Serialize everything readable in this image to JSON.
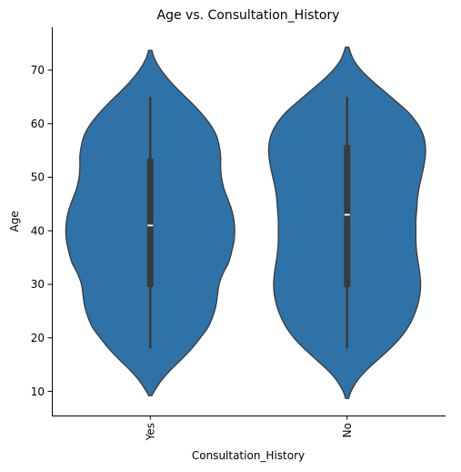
{
  "chart_data": {
    "type": "violin",
    "title": "Age vs. Consultation_History",
    "xlabel": "Consultation_History",
    "ylabel": "Age",
    "categories": [
      "Yes",
      "No"
    ],
    "yticks": [
      10,
      20,
      30,
      40,
      50,
      60,
      70
    ],
    "ylim": [
      5.5,
      78
    ],
    "grid": false,
    "color": "#2f72a8",
    "edge_color": "#3a3a3a",
    "box_color": "#3a3a3a",
    "median_color": "#ffffff",
    "series": [
      {
        "category": "Yes",
        "min": 18,
        "q1": 29.5,
        "median": 41,
        "q3": 53.5,
        "max": 65,
        "density": [
          [
            9.2,
            0.02
          ],
          [
            10,
            0.05
          ],
          [
            12,
            0.14
          ],
          [
            14,
            0.26
          ],
          [
            16,
            0.4
          ],
          [
            18,
            0.53
          ],
          [
            20,
            0.64
          ],
          [
            22,
            0.74
          ],
          [
            24,
            0.8
          ],
          [
            26,
            0.84
          ],
          [
            28,
            0.86
          ],
          [
            30,
            0.88
          ],
          [
            32,
            0.93
          ],
          [
            34,
            1.0
          ],
          [
            36,
            1.04
          ],
          [
            38,
            1.07
          ],
          [
            40,
            1.08
          ],
          [
            42,
            1.07
          ],
          [
            44,
            1.04
          ],
          [
            46,
            0.99
          ],
          [
            48,
            0.94
          ],
          [
            50,
            0.91
          ],
          [
            52,
            0.9
          ],
          [
            54,
            0.9
          ],
          [
            56,
            0.88
          ],
          [
            58,
            0.84
          ],
          [
            60,
            0.76
          ],
          [
            62,
            0.65
          ],
          [
            64,
            0.52
          ],
          [
            66,
            0.38
          ],
          [
            68,
            0.25
          ],
          [
            70,
            0.14
          ],
          [
            72,
            0.06
          ],
          [
            73.7,
            0.02
          ]
        ]
      },
      {
        "category": "No",
        "min": 18,
        "q1": 29.5,
        "median": 43,
        "q3": 56,
        "max": 65,
        "density": [
          [
            8.7,
            0.02
          ],
          [
            10,
            0.05
          ],
          [
            12,
            0.13
          ],
          [
            14,
            0.25
          ],
          [
            16,
            0.4
          ],
          [
            18,
            0.55
          ],
          [
            20,
            0.68
          ],
          [
            22,
            0.78
          ],
          [
            24,
            0.85
          ],
          [
            26,
            0.9
          ],
          [
            28,
            0.93
          ],
          [
            30,
            0.94
          ],
          [
            32,
            0.93
          ],
          [
            34,
            0.91
          ],
          [
            36,
            0.89
          ],
          [
            38,
            0.88
          ],
          [
            40,
            0.88
          ],
          [
            42,
            0.88
          ],
          [
            44,
            0.89
          ],
          [
            46,
            0.9
          ],
          [
            48,
            0.92
          ],
          [
            50,
            0.95
          ],
          [
            52,
            0.98
          ],
          [
            54,
            1.0
          ],
          [
            56,
            1.0
          ],
          [
            58,
            0.97
          ],
          [
            60,
            0.9
          ],
          [
            62,
            0.79
          ],
          [
            64,
            0.64
          ],
          [
            66,
            0.48
          ],
          [
            68,
            0.32
          ],
          [
            70,
            0.18
          ],
          [
            72,
            0.08
          ],
          [
            74.3,
            0.02
          ]
        ]
      }
    ]
  }
}
